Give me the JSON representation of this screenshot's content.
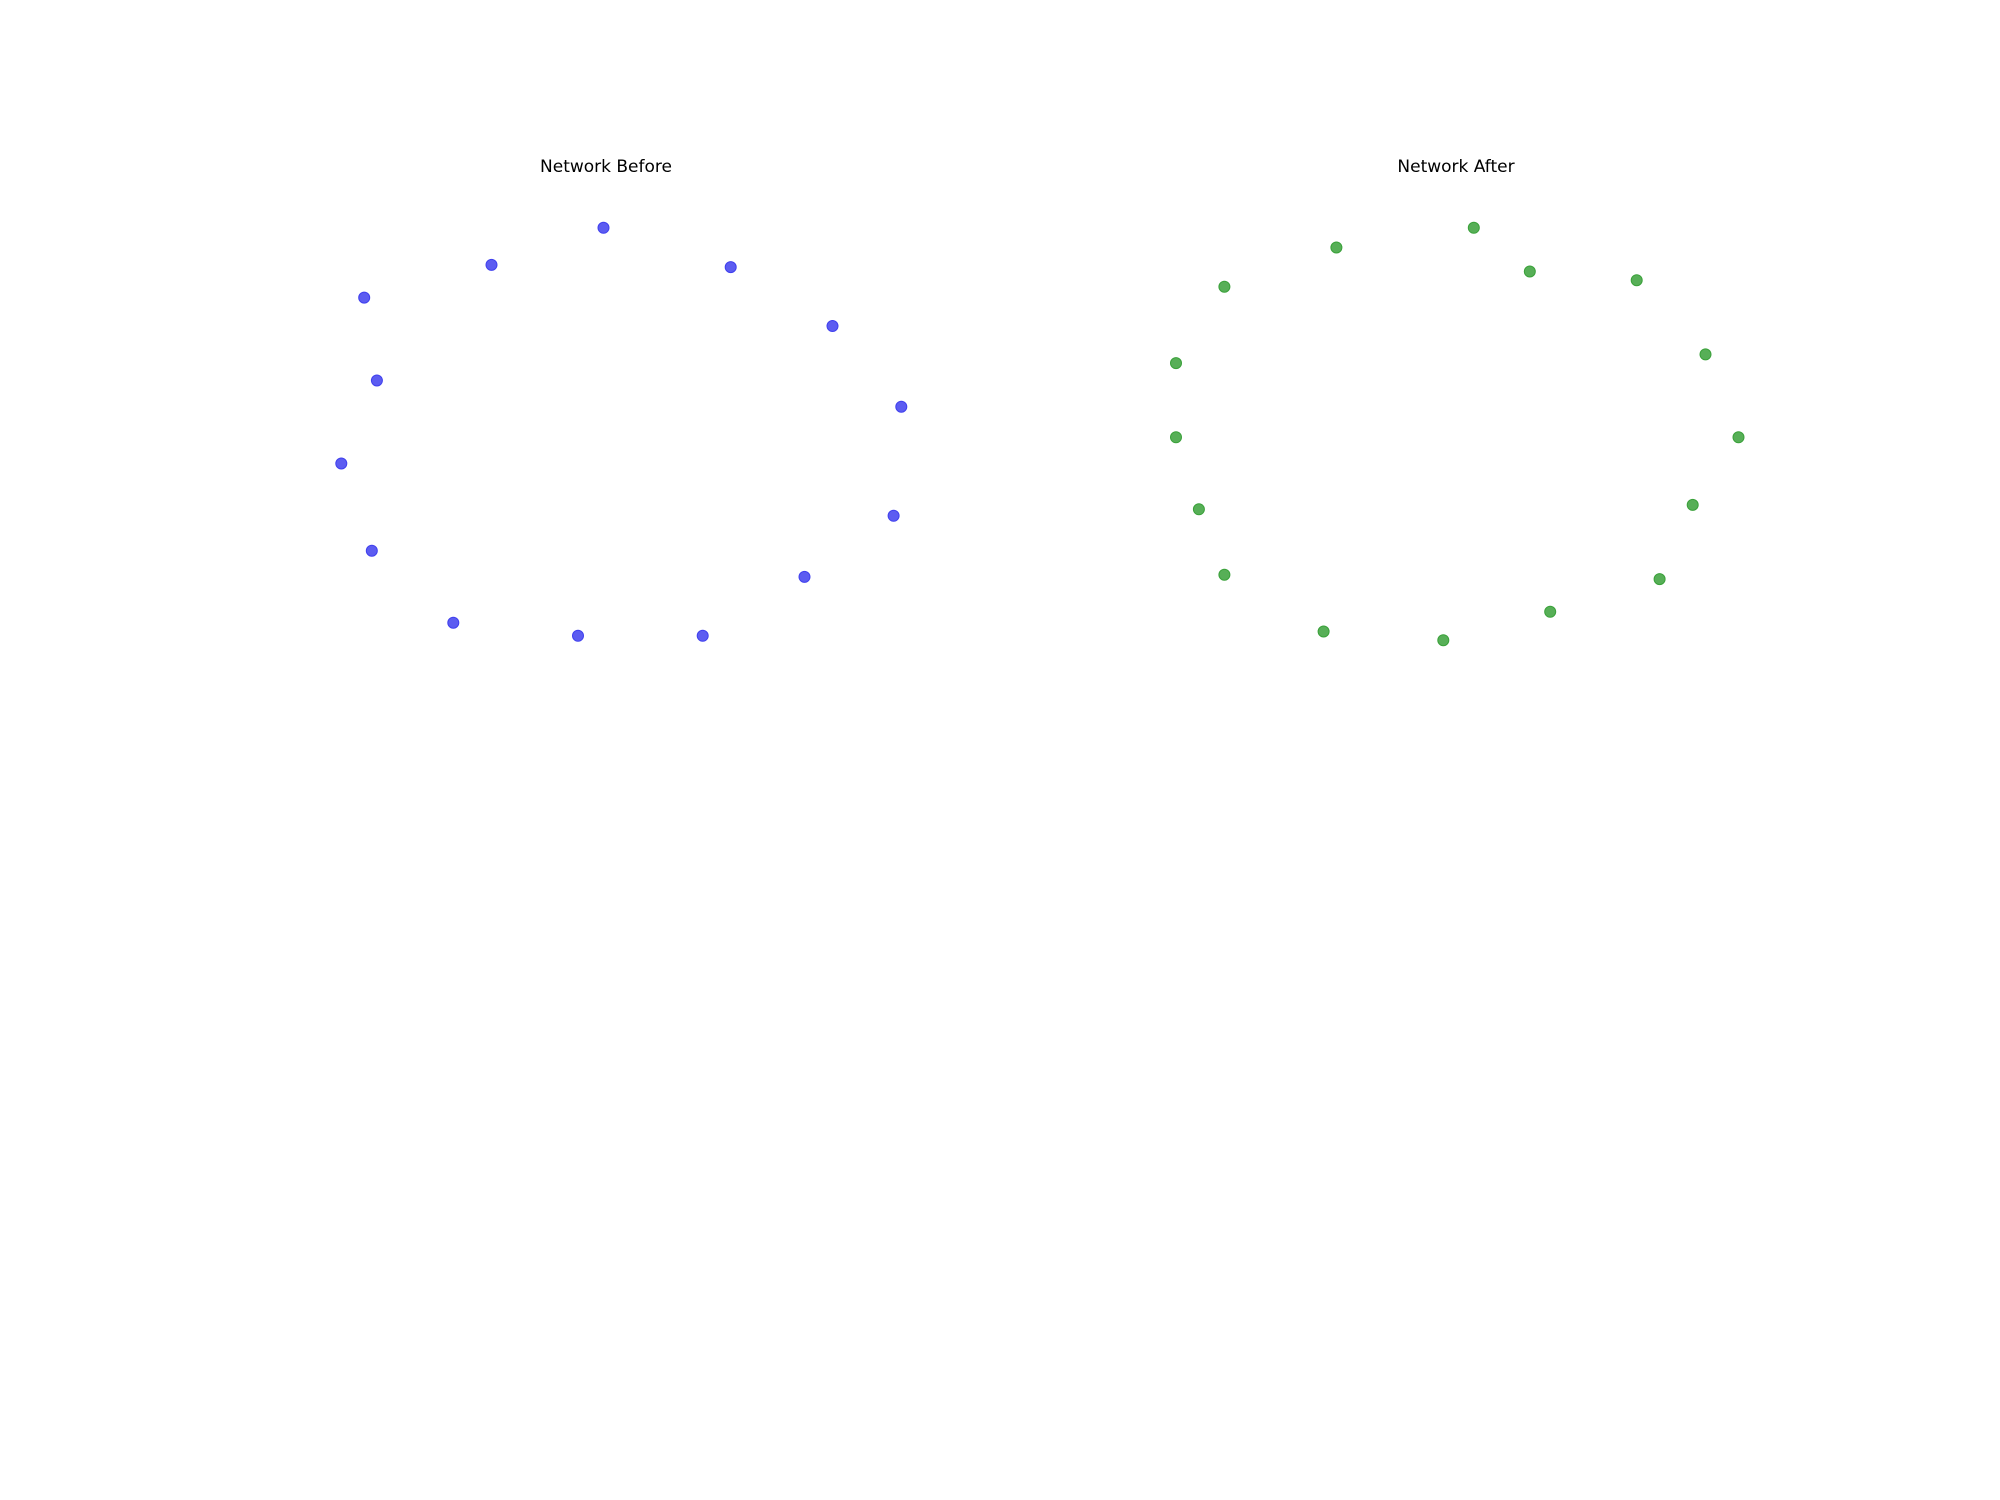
{
  "chart_data": [
    {
      "type": "scatter",
      "title": "Network Before",
      "node_color": "#4040ee",
      "axis_visible": false,
      "xlim": [
        -1.1,
        1.1
      ],
      "ylim": [
        -1.1,
        1.1
      ],
      "points": [
        {
          "x": -0.01,
          "y": 1.0
        },
        {
          "x": -0.45,
          "y": 0.83
        },
        {
          "x": 0.49,
          "y": 0.82
        },
        {
          "x": -0.95,
          "y": 0.68
        },
        {
          "x": 0.89,
          "y": 0.55
        },
        {
          "x": -0.9,
          "y": 0.3
        },
        {
          "x": 1.16,
          "y": 0.18
        },
        {
          "x": -1.04,
          "y": -0.08
        },
        {
          "x": 1.13,
          "y": -0.32
        },
        {
          "x": -0.92,
          "y": -0.48
        },
        {
          "x": 0.78,
          "y": -0.6
        },
        {
          "x": -0.6,
          "y": -0.81
        },
        {
          "x": -0.11,
          "y": -0.87
        },
        {
          "x": 0.38,
          "y": -0.87
        }
      ]
    },
    {
      "type": "scatter",
      "title": "Network After",
      "node_color": "#3aa13a",
      "axis_visible": false,
      "xlim": [
        -1.1,
        1.1
      ],
      "ylim": [
        -1.1,
        1.1
      ],
      "points": [
        {
          "x": 0.07,
          "y": 1.0
        },
        {
          "x": -0.47,
          "y": 0.91
        },
        {
          "x": 0.29,
          "y": 0.8
        },
        {
          "x": -0.91,
          "y": 0.73
        },
        {
          "x": 0.71,
          "y": 0.76
        },
        {
          "x": -1.1,
          "y": 0.38
        },
        {
          "x": 0.98,
          "y": 0.42
        },
        {
          "x": -1.1,
          "y": 0.04
        },
        {
          "x": 1.11,
          "y": 0.04
        },
        {
          "x": -1.01,
          "y": -0.29
        },
        {
          "x": 0.93,
          "y": -0.27
        },
        {
          "x": -0.91,
          "y": -0.59
        },
        {
          "x": 0.8,
          "y": -0.61
        },
        {
          "x": -0.52,
          "y": -0.85
        },
        {
          "x": -0.05,
          "y": -0.89
        },
        {
          "x": 0.37,
          "y": -0.76
        }
      ]
    }
  ]
}
